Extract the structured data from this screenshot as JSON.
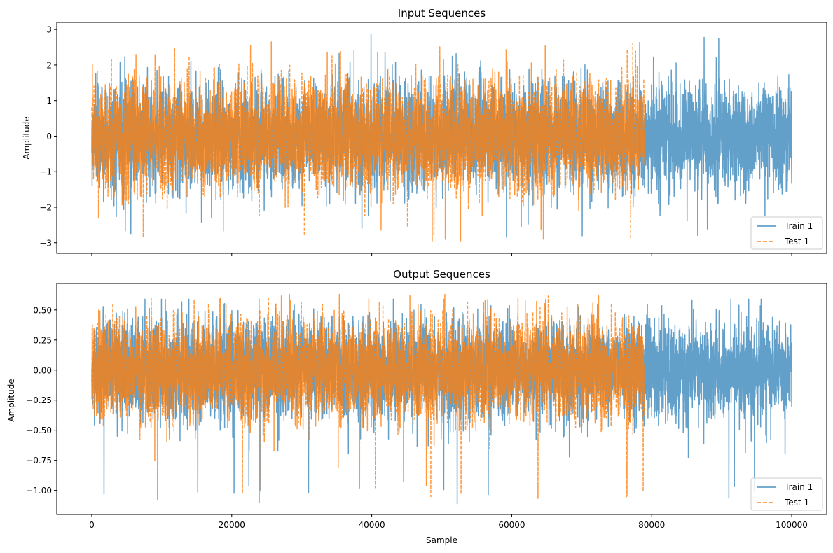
{
  "chart_data": [
    {
      "type": "line",
      "title": "Input Sequences",
      "xlabel": "",
      "ylabel": "Amplitude",
      "xlim": [
        -5000,
        105000
      ],
      "ylim": [
        -3.3,
        3.2
      ],
      "xticks": [
        0,
        20000,
        40000,
        60000,
        80000,
        100000
      ],
      "xtick_labels": [
        "",
        "",
        "",
        "",
        "",
        ""
      ],
      "yticks": [
        -3,
        -2,
        -1,
        0,
        1,
        2,
        3
      ],
      "ytick_labels": [
        "−3",
        "−2",
        "−1",
        "0",
        "1",
        "2",
        "3"
      ],
      "grid": false,
      "legend_position": "lower-right",
      "series": [
        {
          "name": "Train 1",
          "style": "solid",
          "color": "#1f77b4",
          "alpha": 0.7,
          "x_range": [
            0,
            100000
          ],
          "noise_std": 0.72,
          "envelope_typical": [
            -1.7,
            1.75
          ],
          "envelope_extreme": [
            -2.93,
            2.88
          ]
        },
        {
          "name": "Test 1",
          "style": "dashed",
          "color": "#ff7f0e",
          "alpha": 0.8,
          "x_range": [
            0,
            79000
          ],
          "noise_std": 0.72,
          "envelope_typical": [
            -1.75,
            1.85
          ],
          "envelope_extreme": [
            -2.98,
            2.68
          ]
        }
      ]
    },
    {
      "type": "line",
      "title": "Output Sequences",
      "xlabel": "Sample",
      "ylabel": "Amplitude",
      "xlim": [
        -5000,
        105000
      ],
      "ylim": [
        -1.2,
        0.72
      ],
      "xticks": [
        0,
        20000,
        40000,
        60000,
        80000,
        100000
      ],
      "xtick_labels": [
        "0",
        "20000",
        "40000",
        "60000",
        "80000",
        "100000"
      ],
      "yticks": [
        -1.0,
        -0.75,
        -0.5,
        -0.25,
        0.0,
        0.25,
        0.5
      ],
      "ytick_labels": [
        "−1.00",
        "−0.75",
        "−0.50",
        "−0.25",
        "0.00",
        "0.25",
        "0.50"
      ],
      "grid": false,
      "legend_position": "lower-right",
      "series": [
        {
          "name": "Train 1",
          "style": "solid",
          "color": "#1f77b4",
          "alpha": 0.7,
          "x_range": [
            0,
            100000
          ],
          "noise_std": 0.2,
          "envelope_typical": [
            -0.55,
            0.42
          ],
          "envelope_extreme": [
            -1.12,
            0.59
          ]
        },
        {
          "name": "Test 1",
          "style": "dashed",
          "color": "#ff7f0e",
          "alpha": 0.8,
          "x_range": [
            0,
            79000
          ],
          "noise_std": 0.2,
          "envelope_typical": [
            -0.58,
            0.45
          ],
          "envelope_extreme": [
            -1.09,
            0.63
          ]
        }
      ]
    }
  ]
}
